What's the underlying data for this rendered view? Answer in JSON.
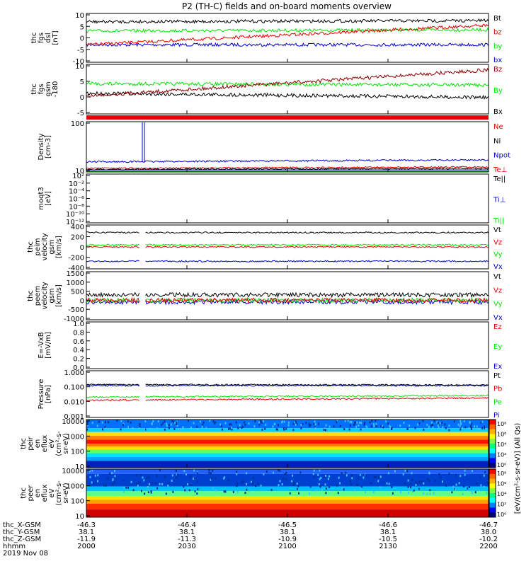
{
  "title": "P2 (TH-C) fields and on-board moments overview",
  "colors": {
    "black": "#000000",
    "red": "#e60000",
    "green": "#00e600",
    "blue": "#0000d0",
    "darkred": "#8b0000"
  },
  "chart_data": [
    {
      "type": "line",
      "id": "fgs_dsl",
      "ylabel": [
        "thc",
        "fgs",
        "dsl",
        "[nT]"
      ],
      "ylim": [
        -10,
        10
      ],
      "yticks": [
        "10",
        "5",
        "0",
        "-5",
        "-10"
      ],
      "series": [
        {
          "name": "Bt",
          "color": "black",
          "level": [
            7,
            7.5
          ]
        },
        {
          "name": "bz",
          "color": "red",
          "level": [
            -3,
            5.5
          ]
        },
        {
          "name": "by",
          "color": "green",
          "level": [
            3,
            3.5
          ]
        },
        {
          "name": "bx",
          "color": "blue",
          "level": [
            -3,
            -3
          ]
        }
      ]
    },
    {
      "type": "line",
      "id": "fgs_gsm",
      "ylabel": [
        "thc",
        "fgs",
        "gsm",
        "-180"
      ],
      "ylim": [
        -7,
        10
      ],
      "yticks": [
        "10",
        "5",
        "0",
        "-5"
      ],
      "series": [
        {
          "name": "Bz",
          "color": "darkred",
          "level": [
            -1,
            8.5
          ]
        },
        {
          "name": "By",
          "color": "green",
          "level": [
            3.5,
            3
          ]
        },
        {
          "name": "Bx",
          "color": "black",
          "level": [
            0,
            -1.5
          ]
        }
      ]
    },
    {
      "type": "line",
      "id": "density",
      "ylabel": [
        "Density",
        "[cm-3]"
      ],
      "yticks": [
        "100",
        "10"
      ],
      "series": [
        {
          "name": "Ne",
          "color": "red"
        },
        {
          "name": "Ni",
          "color": "black"
        },
        {
          "name": "Npot",
          "color": "blue"
        },
        {
          "name": "Te⊥",
          "color": "red"
        }
      ]
    },
    {
      "type": "line",
      "id": "temp",
      "ylabel": [
        "moqt3",
        "[eV]"
      ],
      "yticks": [
        "10²",
        "10⁻²",
        "10⁻⁴",
        "10⁻⁶",
        "10⁻⁸",
        "10⁻¹⁰",
        "10⁻¹²"
      ],
      "series": [
        {
          "name": "Te||",
          "color": "black"
        },
        {
          "name": "Ti⊥",
          "color": "blue"
        },
        {
          "name": "Ti||",
          "color": "green"
        }
      ]
    },
    {
      "type": "line",
      "id": "peim",
      "ylabel": [
        "thc",
        "peim",
        "velocity",
        "gsm",
        "[km/s]"
      ],
      "ylim": [
        -400,
        400
      ],
      "yticks": [
        "400",
        "200",
        "0",
        "-200",
        "-400"
      ],
      "series": [
        {
          "name": "Vt",
          "color": "black",
          "level": [
            280,
            280
          ]
        },
        {
          "name": "Vz",
          "color": "red",
          "level": [
            0,
            0
          ]
        },
        {
          "name": "Vy",
          "color": "green",
          "level": [
            40,
            40
          ]
        },
        {
          "name": "Vx",
          "color": "blue",
          "level": [
            -280,
            -280
          ]
        }
      ]
    },
    {
      "type": "line",
      "id": "peem",
      "ylabel": [
        "thc",
        "peem",
        "velocity",
        "gsm",
        "[km/s]"
      ],
      "ylim": [
        -1000,
        1500
      ],
      "yticks": [
        "1500",
        "1000",
        "500",
        "0",
        "-500",
        "-1000"
      ],
      "series": [
        {
          "name": "Vt",
          "color": "black",
          "level": [
            300,
            300
          ]
        },
        {
          "name": "Vz",
          "color": "red",
          "level": [
            0,
            0
          ]
        },
        {
          "name": "Vy",
          "color": "green",
          "level": [
            0,
            0
          ]
        },
        {
          "name": "Vx",
          "color": "blue",
          "level": [
            -100,
            -100
          ]
        }
      ]
    },
    {
      "type": "line",
      "id": "efield",
      "ylabel": [
        "E=-VxB",
        "[mV/m]"
      ],
      "ylim": [
        0,
        1
      ],
      "yticks": [
        "1.0",
        "0.8",
        "0.6",
        "0.4",
        "0.2",
        "0.0"
      ],
      "series": [
        {
          "name": "Ez",
          "color": "red"
        },
        {
          "name": "Ey",
          "color": "green"
        },
        {
          "name": "Ex",
          "color": "blue"
        }
      ]
    },
    {
      "type": "line",
      "id": "pressure",
      "ylabel": [
        "Pressure",
        "[nPa]"
      ],
      "yscale": "log",
      "ylim": [
        0.001,
        1
      ],
      "yticks": [
        "1.000",
        "0.100",
        "0.010",
        "0.001"
      ],
      "series": [
        {
          "name": "Pt",
          "color": "black",
          "level": [
            0.14,
            0.13
          ]
        },
        {
          "name": "Pb",
          "color": "red",
          "level": [
            0.012,
            0.017
          ]
        },
        {
          "name": "Pe",
          "color": "green",
          "level": [
            0.02,
            0.025
          ]
        },
        {
          "name": "Pi",
          "color": "blue",
          "level": [
            0.12,
            0.12
          ]
        }
      ]
    },
    {
      "type": "heatmap",
      "id": "peir_spec",
      "ylabel": [
        "thc",
        "peir",
        "en",
        "eflux",
        "eV",
        "(cm²-s-",
        "sr-eV)"
      ],
      "yticks": [
        "10000",
        "1000",
        "100",
        "10"
      ]
    },
    {
      "type": "heatmap",
      "id": "peer_spec",
      "ylabel": [
        "thc",
        "peer",
        "en",
        "eflux",
        "eV",
        "(cm²-s-",
        "sr-eV)"
      ],
      "yticks": [
        "10000",
        "1000",
        "100",
        "10"
      ]
    }
  ],
  "colorbar": {
    "label": "[eV/(cm²-s-sr-eV)] (All Qs)",
    "ticks_top": [
      "10⁸",
      "10⁶",
      "10⁴",
      "10²",
      "10⁰"
    ],
    "ticks_bottom": [
      "10⁸",
      "10⁶",
      "10⁴",
      "10²",
      "10⁰"
    ]
  },
  "xaxis": {
    "rows": [
      {
        "label": "thc_X-GSM",
        "values": [
          "-46.3",
          "-46.4",
          "-46.5",
          "-46.6",
          "-46.7"
        ]
      },
      {
        "label": "thc_Y-GSM",
        "values": [
          "38.1",
          "38.1",
          "38.1",
          "38.1",
          "38.0"
        ]
      },
      {
        "label": "thc_Z-GSM",
        "values": [
          "-11.9",
          "-11.3",
          "-10.9",
          "-10.5",
          "-10.2"
        ]
      },
      {
        "label": "hhmm",
        "values": [
          "2000",
          "2030",
          "2100",
          "2130",
          "2200"
        ]
      }
    ],
    "date": "2019 Nov 08"
  }
}
